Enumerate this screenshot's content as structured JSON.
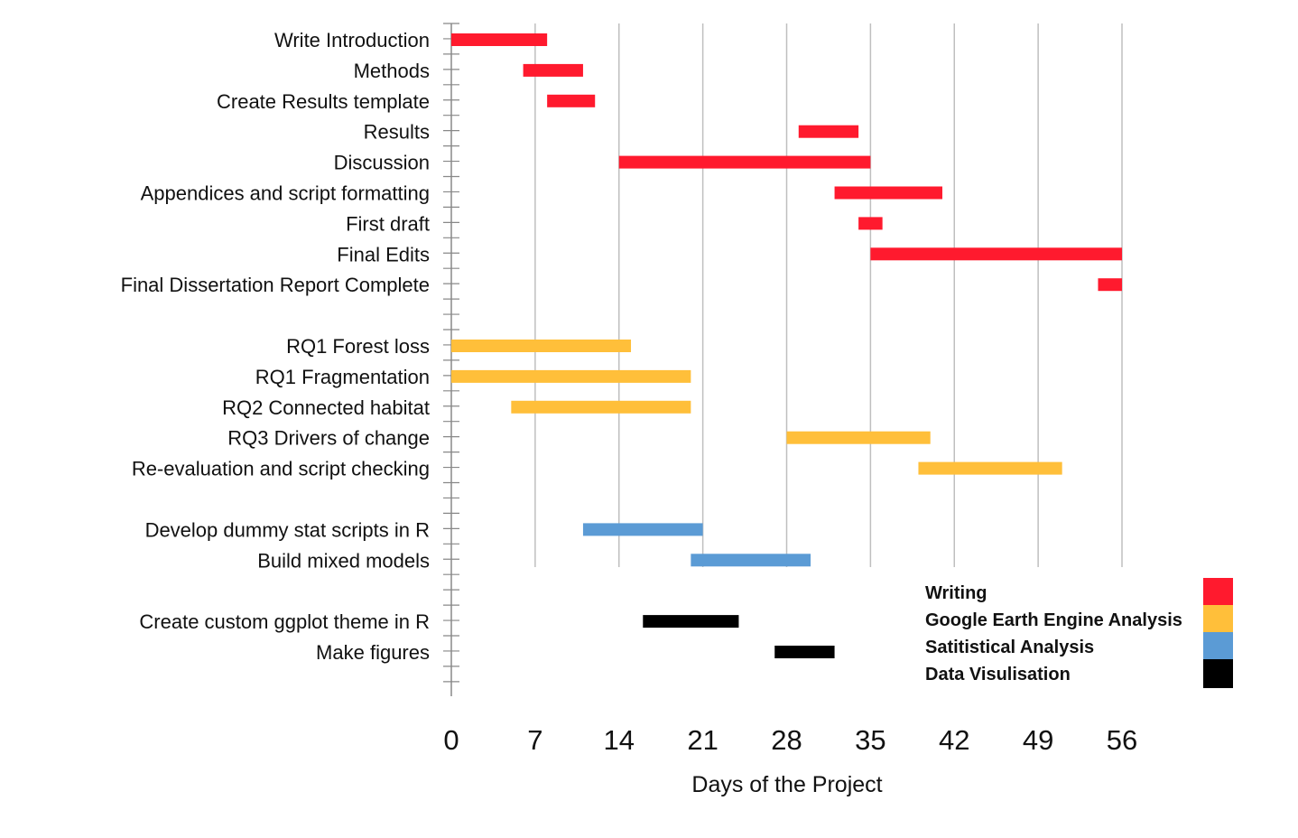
{
  "chart_data": {
    "type": "gantt",
    "xlabel": "Days of the Project",
    "xlim": [
      0,
      56
    ],
    "xticks": [
      0,
      7,
      14,
      21,
      28,
      35,
      42,
      49,
      56
    ],
    "grid": "vertical",
    "legend_position": "bottom-right",
    "categories": [
      {
        "name": "Writing",
        "color": "#FF1A2E"
      },
      {
        "name": "Google Earth Engine Analysis",
        "color": "#FFBF3A"
      },
      {
        "name": "Satitistical Analysis",
        "color": "#5B9BD5"
      },
      {
        "name": "Data Visulisation",
        "color": "#000000"
      }
    ],
    "tasks": [
      {
        "label": "Write Introduction",
        "start": 0,
        "end": 8,
        "category": 0
      },
      {
        "label": "Methods",
        "start": 6,
        "end": 11,
        "category": 0
      },
      {
        "label": "Create Results template",
        "start": 8,
        "end": 12,
        "category": 0
      },
      {
        "label": "Results",
        "start": 29,
        "end": 34,
        "category": 0
      },
      {
        "label": "Discussion",
        "start": 14,
        "end": 35,
        "category": 0
      },
      {
        "label": "Appendices and script formatting",
        "start": 32,
        "end": 41,
        "category": 0
      },
      {
        "label": "First draft",
        "start": 34,
        "end": 36,
        "category": 0
      },
      {
        "label": "Final Edits",
        "start": 35,
        "end": 56,
        "category": 0
      },
      {
        "label": "Final Dissertation Report Complete",
        "start": 54,
        "end": 56,
        "category": 0
      },
      {
        "label": "",
        "start": null,
        "end": null,
        "category": null
      },
      {
        "label": "RQ1 Forest loss",
        "start": 0,
        "end": 15,
        "category": 1
      },
      {
        "label": "RQ1 Fragmentation",
        "start": 0,
        "end": 20,
        "category": 1
      },
      {
        "label": "RQ2 Connected habitat",
        "start": 5,
        "end": 20,
        "category": 1
      },
      {
        "label": "RQ3 Drivers of change",
        "start": 28,
        "end": 40,
        "category": 1
      },
      {
        "label": "Re-evaluation and script checking",
        "start": 39,
        "end": 51,
        "category": 1
      },
      {
        "label": "",
        "start": null,
        "end": null,
        "category": null
      },
      {
        "label": "Develop dummy stat scripts in R",
        "start": 11,
        "end": 21,
        "category": 2
      },
      {
        "label": "Build mixed models",
        "start": 20,
        "end": 30,
        "category": 2
      },
      {
        "label": "",
        "start": null,
        "end": null,
        "category": null
      },
      {
        "label": "Create custom ggplot theme in R",
        "start": 16,
        "end": 24,
        "category": 3
      },
      {
        "label": "Make figures",
        "start": 27,
        "end": 32,
        "category": 3
      }
    ]
  }
}
